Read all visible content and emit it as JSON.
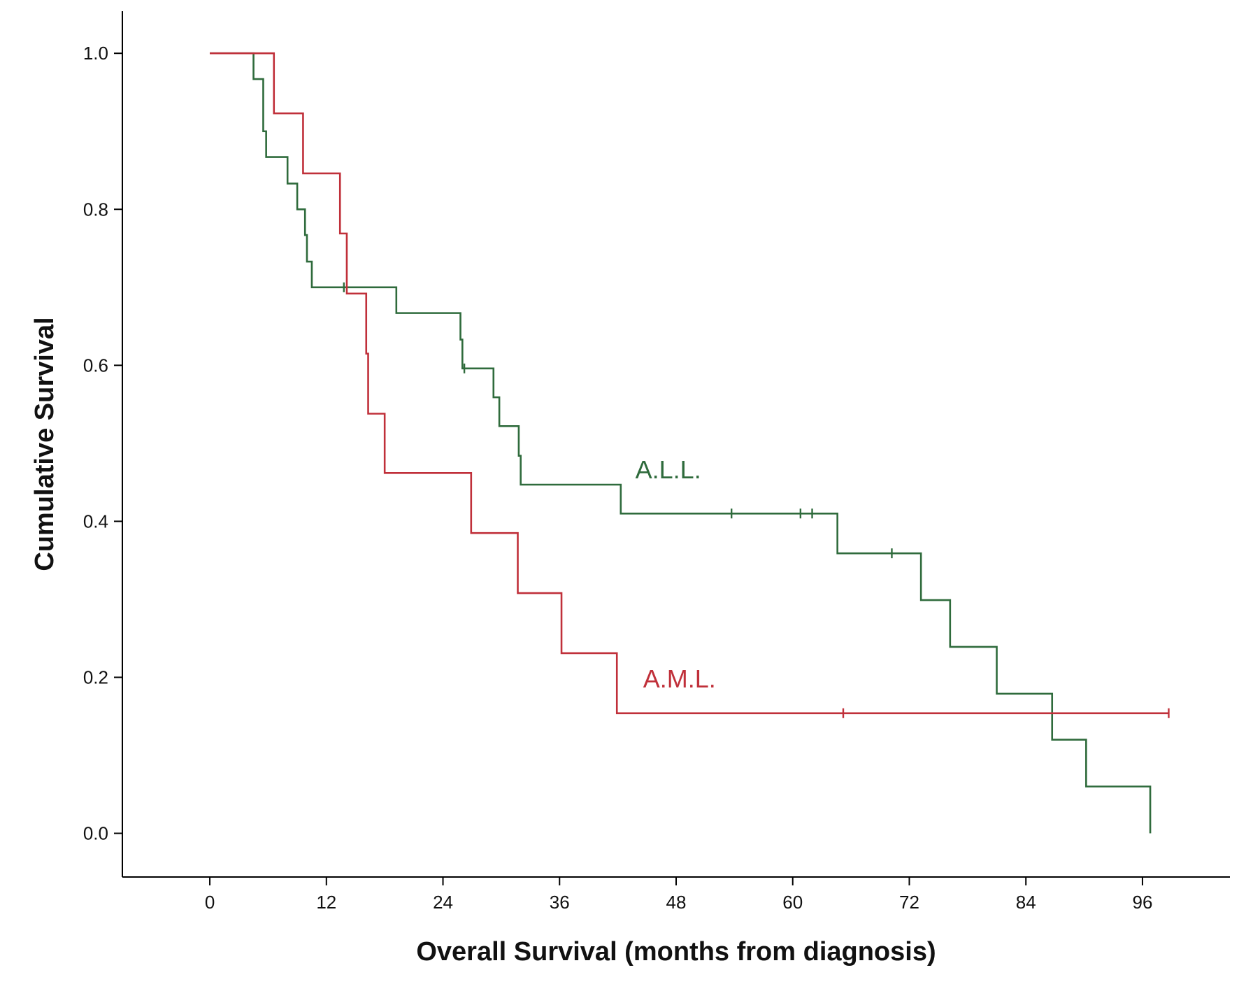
{
  "chart_data": {
    "type": "line",
    "subtype": "kaplan-meier step",
    "xlabel": "Overall Survival (months from diagnosis)",
    "ylabel": "Cumulative Survival",
    "xlim": [
      -9,
      105
    ],
    "ylim": [
      -0.056,
      1.054
    ],
    "xticks": [
      0,
      12,
      24,
      36,
      48,
      60,
      72,
      84,
      96
    ],
    "yticks": [
      0.0,
      0.2,
      0.4,
      0.6,
      0.8,
      1.0
    ],
    "xtick_labels": [
      "0",
      "12",
      "24",
      "36",
      "48",
      "60",
      "72",
      "84",
      "96"
    ],
    "ytick_labels": [
      "0.0",
      "0.2",
      "0.4",
      "0.6",
      "0.8",
      "1.0"
    ],
    "grid": false,
    "series": [
      {
        "name": "A.L.L.",
        "color": "#2f6b3c",
        "steps": [
          [
            0,
            1.0
          ],
          [
            4.5,
            0.967
          ],
          [
            5.5,
            0.9
          ],
          [
            5.8,
            0.867
          ],
          [
            8,
            0.833
          ],
          [
            9,
            0.8
          ],
          [
            9.8,
            0.767
          ],
          [
            10,
            0.733
          ],
          [
            10.5,
            0.7
          ],
          [
            19.2,
            0.667
          ],
          [
            25.8,
            0.633
          ],
          [
            26,
            0.596
          ],
          [
            29.2,
            0.559
          ],
          [
            29.8,
            0.522
          ],
          [
            31.8,
            0.484
          ],
          [
            32,
            0.447
          ],
          [
            42.3,
            0.41
          ],
          [
            64.6,
            0.359
          ],
          [
            73.2,
            0.299
          ],
          [
            76.2,
            0.239
          ],
          [
            81,
            0.179
          ],
          [
            86.7,
            0.12
          ],
          [
            90.2,
            0.06
          ],
          [
            96.8,
            0.0
          ]
        ],
        "end_x": 96.8,
        "censored": [
          [
            13.8,
            0.7
          ],
          [
            26.2,
            0.596
          ],
          [
            53.7,
            0.41
          ],
          [
            60.8,
            0.41
          ],
          [
            62,
            0.41
          ],
          [
            70.2,
            0.359
          ]
        ]
      },
      {
        "name": "A.M.L.",
        "color": "#c0303a",
        "steps": [
          [
            0,
            1.0
          ],
          [
            6.6,
            0.923
          ],
          [
            9.6,
            0.846
          ],
          [
            13.4,
            0.769
          ],
          [
            14.1,
            0.692
          ],
          [
            16.1,
            0.615
          ],
          [
            16.3,
            0.538
          ],
          [
            18,
            0.462
          ],
          [
            26.9,
            0.385
          ],
          [
            31.7,
            0.308
          ],
          [
            36.2,
            0.231
          ],
          [
            41.9,
            0.154
          ]
        ],
        "end_x": 98.7,
        "censored": [
          [
            65.2,
            0.154
          ],
          [
            98.7,
            0.154
          ]
        ]
      }
    ],
    "annotations": [
      {
        "text": "A.L.L.",
        "x": 43.8,
        "y": 0.455,
        "color": "#2f6b3c"
      },
      {
        "text": "A.M.L.",
        "x": 44.6,
        "y": 0.187,
        "color": "#c0303a"
      }
    ]
  }
}
